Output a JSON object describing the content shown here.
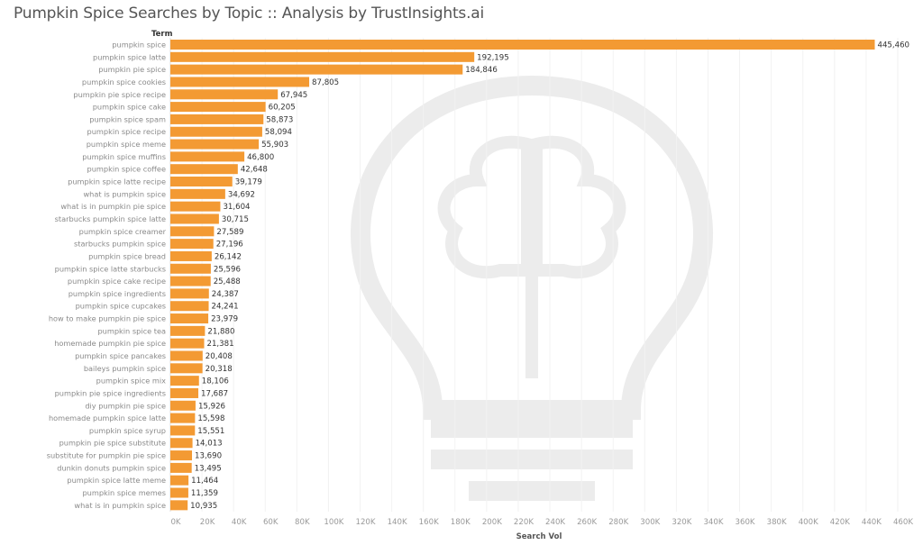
{
  "chart_data": {
    "type": "bar",
    "orientation": "horizontal",
    "title": "Pumpkin Spice Searches by Topic :: Analysis by TrustInsights.ai",
    "ylabel": "Term",
    "xlabel": "Search Vol",
    "xlim": [
      0,
      460000
    ],
    "xticks": [
      "0K",
      "20K",
      "40K",
      "60K",
      "80K",
      "100K",
      "120K",
      "140K",
      "160K",
      "180K",
      "200K",
      "220K",
      "240K",
      "260K",
      "280K",
      "300K",
      "320K",
      "340K",
      "360K",
      "380K",
      "400K",
      "420K",
      "440K",
      "460K"
    ],
    "grid": true,
    "bar_color": "#F39A33",
    "categories": [
      "pumpkin spice",
      "pumpkin spice latte",
      "pumpkin pie spice",
      "pumpkin spice cookies",
      "pumpkin pie spice recipe",
      "pumpkin spice cake",
      "pumpkin spice spam",
      "pumpkin spice recipe",
      "pumpkin spice meme",
      "pumpkin spice muffins",
      "pumpkin spice coffee",
      "pumpkin spice latte recipe",
      "what is pumpkin spice",
      "what is in pumpkin pie spice",
      "starbucks pumpkin spice latte",
      "pumpkin spice creamer",
      "starbucks pumpkin spice",
      "pumpkin spice bread",
      "pumpkin spice latte starbucks",
      "pumpkin spice cake recipe",
      "pumpkin spice ingredients",
      "pumpkin spice cupcakes",
      "how to make pumpkin pie spice",
      "pumpkin spice tea",
      "homemade pumpkin pie spice",
      "pumpkin spice pancakes",
      "baileys pumpkin spice",
      "pumpkin spice mix",
      "pumpkin pie spice ingredients",
      "diy pumpkin pie spice",
      "homemade pumpkin spice latte",
      "pumpkin spice syrup",
      "pumpkin pie spice substitute",
      "substitute for pumpkin pie spice",
      "dunkin donuts pumpkin spice",
      "pumpkin spice latte meme",
      "pumpkin spice memes",
      "what is in pumpkin spice"
    ],
    "values": [
      445460,
      192195,
      184846,
      87805,
      67945,
      60205,
      58873,
      58094,
      55903,
      46800,
      42648,
      39179,
      34692,
      31604,
      30715,
      27589,
      27196,
      26142,
      25596,
      25488,
      24387,
      24241,
      23979,
      21880,
      21381,
      20408,
      20318,
      18106,
      17687,
      15926,
      15598,
      15551,
      14013,
      13690,
      13495,
      11464,
      11359,
      10935
    ],
    "value_labels": [
      "445,460",
      "192,195",
      "184,846",
      "87,805",
      "67,945",
      "60,205",
      "58,873",
      "58,094",
      "55,903",
      "46,800",
      "42,648",
      "39,179",
      "34,692",
      "31,604",
      "30,715",
      "27,589",
      "27,196",
      "26,142",
      "25,596",
      "25,488",
      "24,387",
      "24,241",
      "23,979",
      "21,880",
      "21,381",
      "20,408",
      "20,318",
      "18,106",
      "17,687",
      "15,926",
      "15,598",
      "15,551",
      "14,013",
      "13,690",
      "13,495",
      "11,464",
      "11,359",
      "10,935"
    ]
  }
}
